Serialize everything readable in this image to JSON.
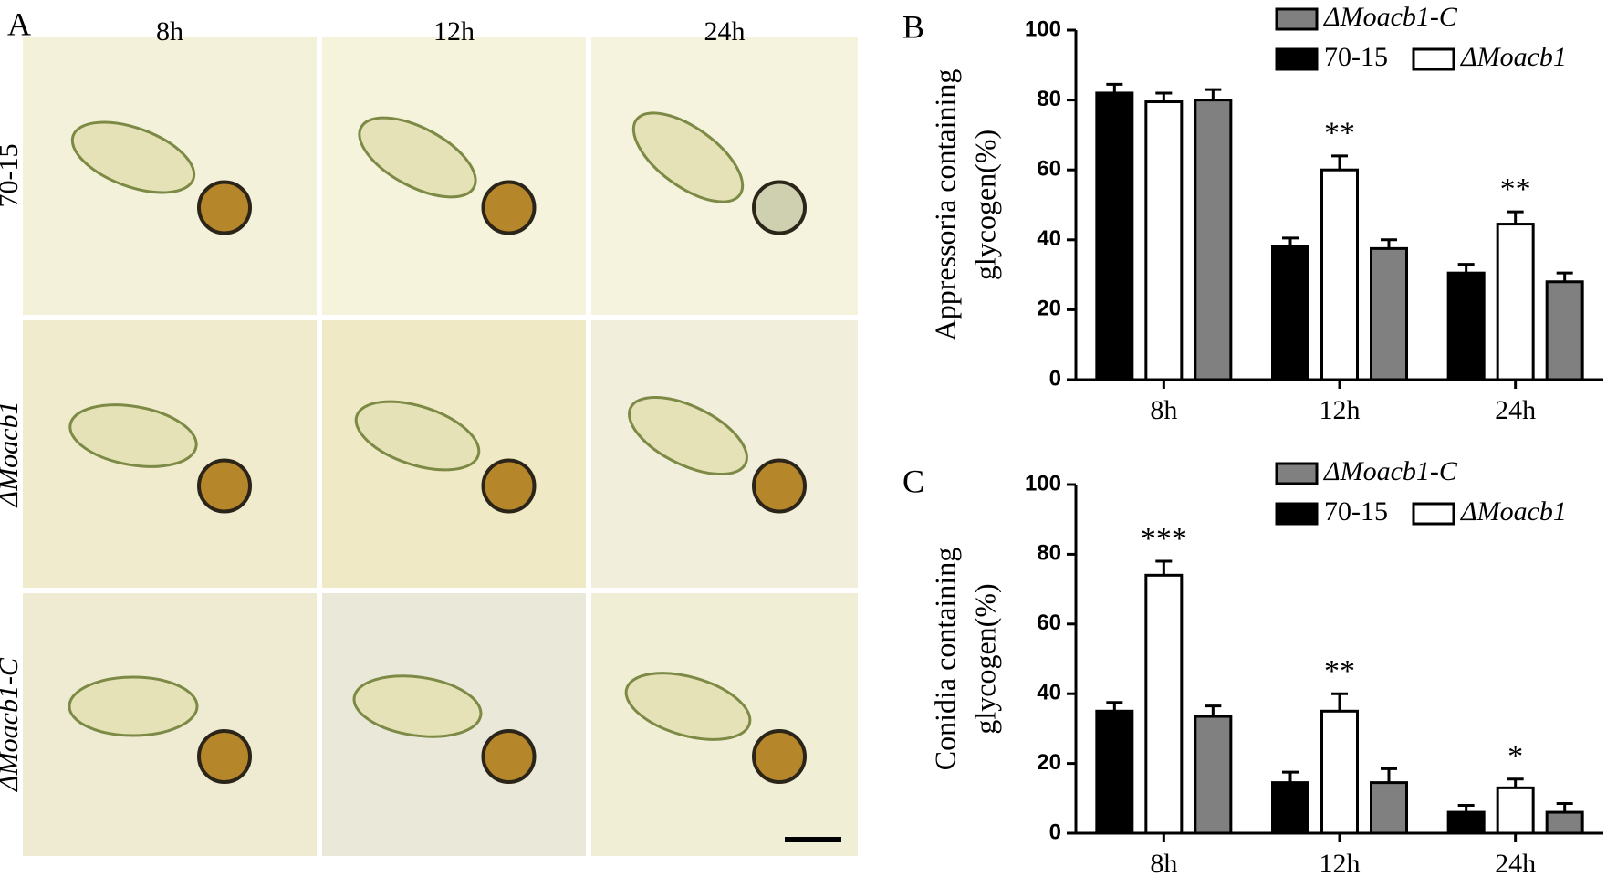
{
  "panel_a": {
    "label": "A",
    "columns": [
      "8h",
      "12h",
      "24h"
    ],
    "rows": [
      "70-15",
      "ΔMoacb1",
      "ΔMoacb1-C"
    ]
  },
  "chart_data": [
    {
      "type": "bar",
      "panel_label": "B",
      "ylabel": [
        "Appressoria containing",
        "glycogen(%)"
      ],
      "categories": [
        "8h",
        "12h",
        "24h"
      ],
      "series": [
        {
          "name": "70-15",
          "color": "#000000",
          "values": [
            82,
            38,
            30.5
          ],
          "errors": [
            2.5,
            2.5,
            2.5
          ]
        },
        {
          "name": "ΔMoacb1",
          "color": "#ffffff",
          "values": [
            79.5,
            60,
            44.5
          ],
          "errors": [
            2.5,
            4,
            3.5
          ],
          "significance": [
            null,
            "**",
            "**"
          ]
        },
        {
          "name": "ΔMoacb1-C",
          "color": "#808080",
          "values": [
            80,
            37.5,
            28
          ],
          "errors": [
            3,
            2.5,
            2.5
          ]
        }
      ],
      "ylim": [
        0,
        100
      ],
      "yticks": [
        0,
        20,
        40,
        60,
        80,
        100
      ]
    },
    {
      "type": "bar",
      "panel_label": "C",
      "ylabel": [
        "Conidia containing",
        "glycogen(%)"
      ],
      "categories": [
        "8h",
        "12h",
        "24h"
      ],
      "series": [
        {
          "name": "70-15",
          "color": "#000000",
          "values": [
            35,
            14.5,
            6
          ],
          "errors": [
            2.5,
            3,
            2
          ]
        },
        {
          "name": "ΔMoacb1",
          "color": "#ffffff",
          "values": [
            74,
            35,
            13
          ],
          "errors": [
            4,
            5,
            2.5
          ],
          "significance": [
            "***",
            "**",
            "*"
          ]
        },
        {
          "name": "ΔMoacb1-C",
          "color": "#808080",
          "values": [
            33.5,
            14.5,
            6
          ],
          "errors": [
            3,
            4,
            2.5
          ]
        }
      ],
      "ylim": [
        0,
        100
      ],
      "yticks": [
        0,
        20,
        40,
        60,
        80,
        100
      ]
    }
  ]
}
